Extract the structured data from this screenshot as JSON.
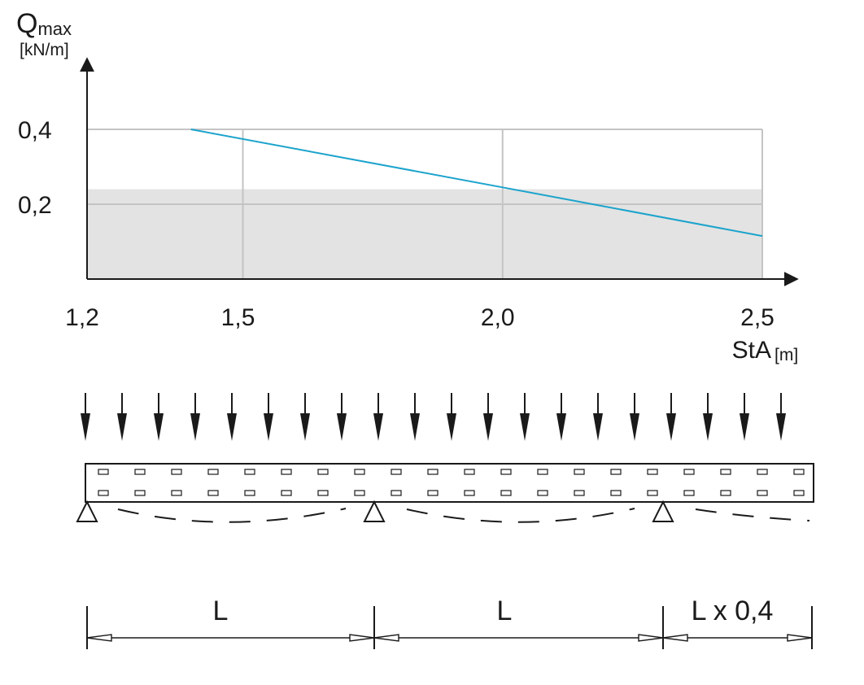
{
  "chart_data": {
    "type": "line",
    "ylabel_main": "Q",
    "ylabel_sub": "max",
    "ylabel_unit": "[kN/m]",
    "xlabel_main": "StA",
    "xlabel_unit": "[m]",
    "x_ticks": [
      {
        "label": "1,2",
        "value": 1.2
      },
      {
        "label": "1,5",
        "value": 1.5
      },
      {
        "label": "2,0",
        "value": 2.0
      },
      {
        "label": "2,5",
        "value": 2.5
      }
    ],
    "y_ticks": [
      {
        "label": "0,2",
        "value": 0.2
      },
      {
        "label": "0,4",
        "value": 0.4
      }
    ],
    "xlim": [
      1.2,
      2.5
    ],
    "ylim": [
      0,
      0.4
    ],
    "grid": true,
    "shaded_band": {
      "y_from": 0,
      "y_to": 0.24,
      "color": "#e3e3e3"
    },
    "series": [
      {
        "color": "#1ba3cc",
        "points": [
          [
            1.4,
            0.4
          ],
          [
            2.0,
            0.245
          ],
          [
            2.5,
            0.115
          ]
        ]
      }
    ]
  },
  "diagram": {
    "span_labels": [
      "L",
      "L",
      "L x 0,4"
    ]
  }
}
